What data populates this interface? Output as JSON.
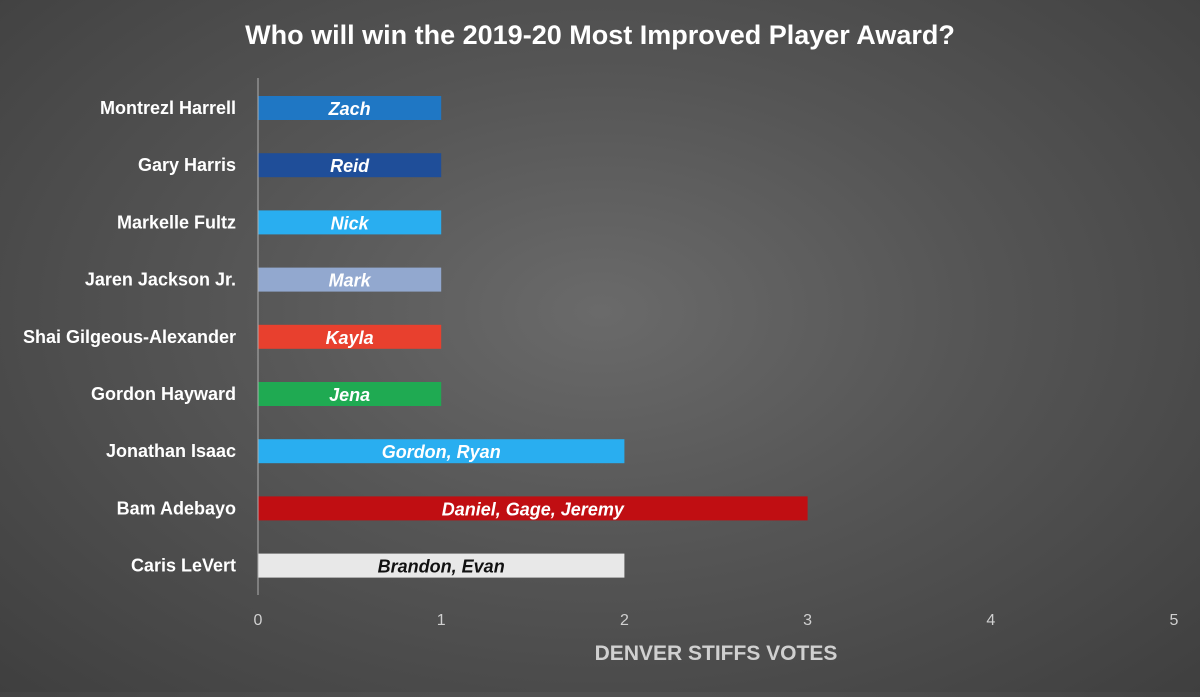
{
  "chart_data": {
    "type": "bar",
    "orientation": "horizontal",
    "title": "Who will win the 2019-20 Most Improved Player Award?",
    "xlabel": "DENVER STIFFS VOTES",
    "ylabel": "",
    "xlim": [
      0,
      5
    ],
    "xticks": [
      "0",
      "1",
      "2",
      "3",
      "4",
      "5"
    ],
    "grid": false,
    "categories": [
      "Montrezl Harrell",
      "Gary Harris",
      "Markelle Fultz",
      "Jaren Jackson Jr.",
      "Shai Gilgeous-Alexander",
      "Gordon Hayward",
      "Jonathan Isaac",
      "Bam Adebayo",
      "Caris LeVert"
    ],
    "values": [
      1,
      1,
      1,
      1,
      1,
      1,
      2,
      3,
      2
    ],
    "data_labels": [
      "Zach",
      "Reid",
      "Nick",
      "Mark",
      "Kayla",
      "Jena",
      "Gordon, Ryan",
      "Daniel, Gage, Jeremy",
      "Brandon, Evan"
    ],
    "colors": [
      "#1f77c4",
      "#1f4e99",
      "#29aef0",
      "#92a8cf",
      "#e8402e",
      "#1faa52",
      "#29aef0",
      "#c00e12",
      "#e8e8e8"
    ],
    "label_colors": [
      "#ffffff",
      "#ffffff",
      "#ffffff",
      "#ffffff",
      "#ffffff",
      "#ffffff",
      "#ffffff",
      "#ffffff",
      "#111111"
    ],
    "background": "#555555",
    "text_color": "#ffffff",
    "axis_label_color": "#d0d0d0"
  }
}
